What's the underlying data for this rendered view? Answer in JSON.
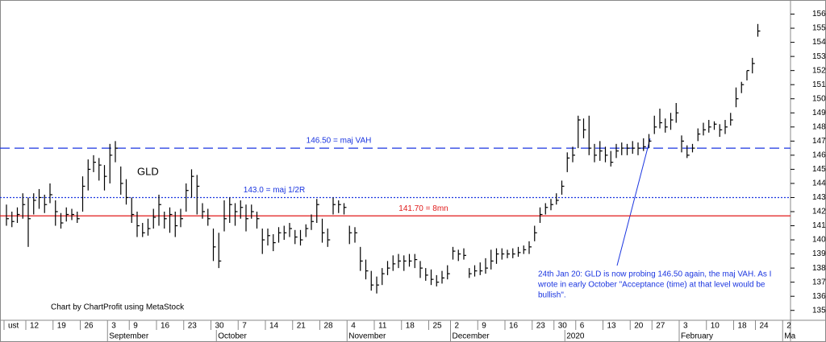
{
  "chart_data": {
    "type": "ohlc",
    "symbol": "GLD",
    "credit": "Chart by ChartProfit using MetaStock",
    "categories": [
      "ust",
      null,
      null,
      null,
      "12",
      null,
      null,
      null,
      null,
      "19",
      null,
      null,
      null,
      null,
      "26",
      null,
      null,
      null,
      null,
      "3",
      null,
      null,
      null,
      "9",
      null,
      null,
      null,
      null,
      "16",
      null,
      null,
      null,
      null,
      "23",
      null,
      null,
      null,
      null,
      "30",
      null,
      null,
      null,
      null,
      "7",
      null,
      null,
      null,
      null,
      "14",
      null,
      null,
      null,
      null,
      "21",
      null,
      null,
      null,
      null,
      "28",
      null,
      null,
      null,
      null,
      "4",
      null,
      null,
      null,
      null,
      "11",
      null,
      null,
      null,
      null,
      "18",
      null,
      null,
      null,
      null,
      "25",
      null,
      null,
      null,
      "2",
      null,
      null,
      null,
      null,
      "9",
      null,
      null,
      null,
      null,
      "16",
      null,
      null,
      null,
      null,
      "23",
      null,
      null,
      null,
      "30",
      null,
      null,
      null,
      "6",
      null,
      null,
      null,
      null,
      "13",
      null,
      null,
      null,
      null,
      "20",
      null,
      null,
      null,
      "27",
      null,
      null,
      null,
      null,
      "3",
      null,
      null,
      null,
      null,
      "10",
      null,
      null,
      null,
      null,
      "18",
      null,
      null,
      null,
      "24",
      null,
      null,
      null,
      null,
      "2"
    ],
    "months": [
      null,
      null,
      null,
      null,
      null,
      null,
      null,
      null,
      null,
      null,
      null,
      null,
      null,
      null,
      null,
      null,
      null,
      null,
      null,
      "September",
      null,
      null,
      null,
      null,
      null,
      null,
      null,
      null,
      null,
      null,
      null,
      null,
      null,
      null,
      null,
      null,
      null,
      null,
      null,
      "October",
      null,
      null,
      null,
      null,
      null,
      null,
      null,
      null,
      null,
      null,
      null,
      null,
      null,
      null,
      null,
      null,
      null,
      null,
      null,
      null,
      null,
      null,
      null,
      "November",
      null,
      null,
      null,
      null,
      null,
      null,
      null,
      null,
      null,
      null,
      null,
      null,
      null,
      null,
      null,
      null,
      null,
      null,
      "December",
      null,
      null,
      null,
      null,
      null,
      null,
      null,
      null,
      null,
      null,
      null,
      null,
      null,
      null,
      null,
      null,
      null,
      null,
      null,
      null,
      "2020",
      null,
      null,
      null,
      null,
      null,
      null,
      null,
      null,
      null,
      null,
      null,
      null,
      null,
      null,
      null,
      null,
      null,
      null,
      null,
      null,
      "February",
      null,
      null,
      null,
      null,
      null,
      null,
      null,
      null,
      null,
      null,
      null,
      null,
      null,
      null,
      null,
      null,
      null,
      null,
      "Ma"
    ],
    "high": [
      142.5,
      142.0,
      142.3,
      143.3,
      143.0,
      143.3,
      143.6,
      143.2,
      144.0,
      142.8,
      141.9,
      142.3,
      142.2,
      142.0,
      144.5,
      145.7,
      146.0,
      145.8,
      145.3,
      146.8,
      147.0,
      145.2,
      144.3,
      143.0,
      142.0,
      141.2,
      141.5,
      142.2,
      143.2,
      142.0,
      142.3,
      142.0,
      142.2,
      144.0,
      145.0,
      144.6,
      142.6,
      142.2,
      140.8,
      140.5,
      142.8,
      143.0,
      142.6,
      142.8,
      142.5,
      142.5,
      142.0,
      140.8,
      140.8,
      140.4,
      140.9,
      141.0,
      141.2,
      140.7,
      140.7,
      141.1,
      141.8,
      142.9,
      141.5,
      140.8,
      143.0,
      142.8,
      142.6,
      141.0,
      140.9,
      139.5,
      138.6,
      137.8,
      137.4,
      138.0,
      138.5,
      138.9,
      139.0,
      138.9,
      139.0,
      139.0,
      138.5,
      138.0,
      137.9,
      137.5,
      137.8,
      138.2,
      139.5,
      139.3,
      139.4,
      138.0,
      138.2,
      138.4,
      138.7,
      139.3,
      139.4,
      139.4,
      139.3,
      139.4,
      139.5,
      139.6,
      139.9,
      141.0,
      142.3,
      142.6,
      142.9,
      143.3,
      144.2,
      146.2,
      146.6,
      148.8,
      148.6,
      148.8,
      146.8,
      147.0,
      146.6,
      146.3,
      146.8,
      146.9,
      146.8,
      147.0,
      146.9,
      147.2,
      147.5,
      148.8,
      149.3,
      148.6,
      149.0,
      149.7,
      147.4,
      146.7,
      146.8,
      147.9,
      148.3,
      148.5,
      148.4,
      148.2,
      148.5,
      149.0,
      150.8,
      151.2,
      152.0,
      152.9,
      155.3,
      null,
      null,
      null,
      null,
      null
    ],
    "low": [
      141.0,
      140.9,
      141.2,
      141.5,
      139.5,
      141.8,
      142.2,
      141.9,
      142.6,
      141.0,
      140.8,
      141.3,
      141.4,
      141.2,
      142.0,
      143.5,
      144.8,
      144.2,
      143.5,
      144.0,
      145.5,
      143.2,
      142.5,
      141.2,
      140.2,
      140.2,
      140.3,
      140.8,
      141.0,
      140.8,
      140.5,
      140.2,
      140.9,
      142.0,
      143.0,
      141.8,
      141.5,
      141.0,
      138.5,
      138.0,
      140.6,
      141.2,
      141.0,
      141.5,
      140.6,
      141.5,
      140.8,
      139.0,
      139.6,
      139.2,
      139.8,
      140.0,
      140.2,
      139.7,
      139.6,
      140.2,
      140.7,
      141.2,
      139.8,
      139.5,
      141.8,
      141.9,
      141.8,
      139.7,
      139.8,
      137.8,
      137.2,
      136.4,
      136.2,
      136.8,
      137.5,
      137.8,
      138.0,
      137.8,
      138.1,
      138.0,
      137.3,
      137.1,
      136.8,
      136.7,
      136.9,
      137.2,
      138.6,
      138.5,
      138.6,
      137.3,
      137.4,
      137.5,
      137.6,
      137.9,
      138.3,
      138.6,
      138.7,
      138.7,
      138.8,
      139.0,
      139.0,
      139.9,
      141.2,
      141.8,
      142.1,
      142.5,
      143.2,
      144.8,
      145.5,
      146.5,
      147.2,
      146.0,
      145.5,
      145.6,
      145.5,
      145.2,
      145.8,
      146.0,
      146.0,
      146.1,
      146.0,
      146.3,
      146.5,
      147.5,
      147.9,
      147.6,
      147.8,
      148.3,
      146.2,
      145.8,
      146.2,
      147.0,
      147.4,
      147.6,
      147.8,
      147.3,
      147.5,
      148.1,
      149.4,
      150.4,
      151.3,
      151.8,
      154.4,
      null,
      null,
      null,
      null,
      null
    ],
    "close": [
      141.5,
      141.3,
      141.8,
      142.5,
      141.5,
      142.8,
      143.0,
      142.5,
      143.2,
      142.0,
      141.2,
      141.8,
      141.8,
      141.5,
      143.8,
      145.0,
      145.5,
      145.3,
      144.5,
      146.0,
      146.5,
      144.0,
      143.0,
      141.8,
      141.0,
      140.5,
      140.8,
      141.6,
      142.5,
      141.5,
      141.8,
      141.0,
      141.5,
      143.5,
      144.5,
      143.8,
      142.0,
      141.5,
      139.5,
      138.5,
      141.5,
      142.5,
      142.0,
      142.3,
      141.5,
      142.0,
      141.5,
      140.0,
      140.3,
      139.8,
      140.5,
      140.5,
      140.8,
      140.2,
      140.0,
      140.8,
      141.3,
      142.5,
      140.5,
      140.0,
      142.5,
      142.5,
      142.3,
      140.5,
      140.5,
      138.5,
      137.8,
      136.8,
      136.8,
      137.6,
      138.0,
      138.3,
      138.5,
      138.5,
      138.5,
      138.6,
      138.0,
      137.5,
      137.2,
      137.0,
      137.3,
      137.6,
      139.2,
      139.0,
      138.9,
      137.6,
      137.8,
      137.8,
      138.0,
      138.5,
      139.0,
      139.0,
      139.0,
      139.0,
      139.1,
      139.3,
      139.5,
      140.5,
      141.8,
      142.3,
      142.5,
      142.8,
      143.8,
      145.8,
      146.0,
      148.5,
      147.8,
      146.5,
      146.0,
      146.3,
      146.0,
      145.5,
      146.3,
      146.5,
      146.5,
      146.5,
      146.5,
      146.6,
      147.0,
      148.0,
      148.3,
      148.0,
      148.5,
      149.0,
      147.0,
      146.0,
      146.5,
      147.5,
      147.8,
      148.0,
      148.2,
      147.8,
      148.0,
      148.5,
      150.0,
      151.0,
      152.0,
      152.5,
      154.8,
      null,
      null,
      null,
      null,
      null
    ],
    "color": "#000000",
    "ylim": [
      134.3,
      157
    ],
    "yticks": [
      135,
      136,
      137,
      138,
      139,
      140,
      141,
      142,
      143,
      144,
      145,
      146,
      147,
      148,
      149,
      150,
      151,
      152,
      153,
      154,
      155,
      156
    ],
    "ref_lines": [
      {
        "value": 146.5,
        "label": "146.50 = maj VAH",
        "color": "#1a35e0",
        "style": "dashed"
      },
      {
        "value": 143.0,
        "label": "143.0 = maj 1/2R",
        "color": "#1a35e0",
        "style": "dotted"
      },
      {
        "value": 141.7,
        "label": "141.70 = 8mn",
        "color": "#e01a1a",
        "style": "solid"
      }
    ],
    "annotation": [
      "24th Jan 20: GLD is now probing 146.50 again, the maj VAH. As I",
      "wrote in early October \"Acceptance (time) at that level would be",
      "bullish\"."
    ]
  }
}
